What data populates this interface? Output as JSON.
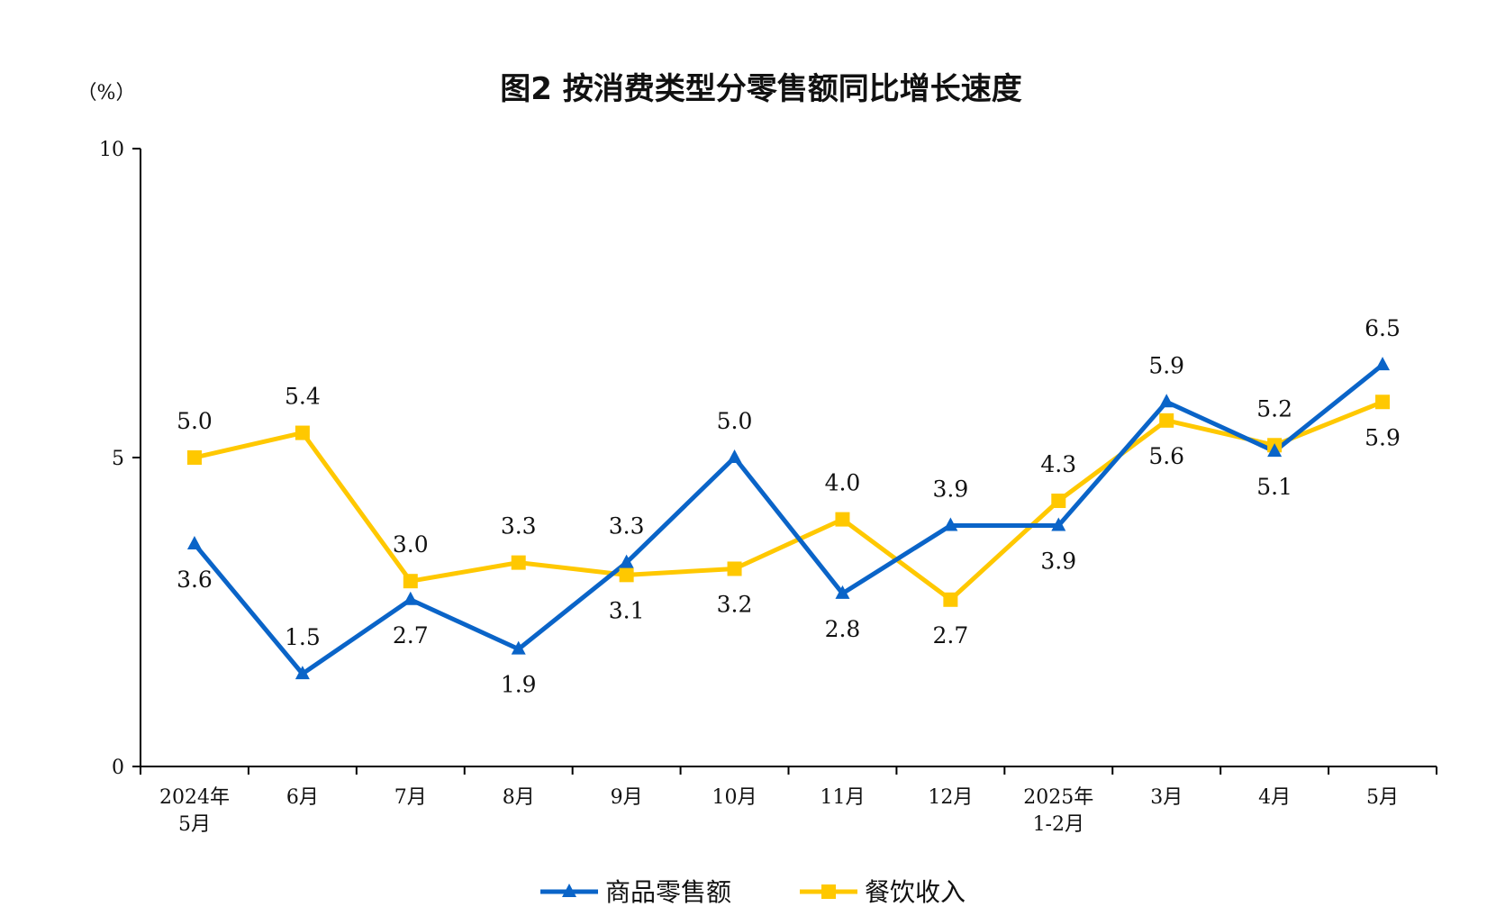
{
  "chart_data": {
    "type": "line",
    "title": "图2  按消费类型分零售额同比增长速度",
    "unit_label": "（%）",
    "ylim": [
      0,
      10
    ],
    "yticks": [
      "0",
      "5",
      "10"
    ],
    "categories": [
      [
        "2024年",
        "5月"
      ],
      [
        "6月"
      ],
      [
        "7月"
      ],
      [
        "8月"
      ],
      [
        "9月"
      ],
      [
        "10月"
      ],
      [
        "11月"
      ],
      [
        "12月"
      ],
      [
        "2025年",
        "1-2月"
      ],
      [
        "3月"
      ],
      [
        "4月"
      ],
      [
        "5月"
      ]
    ],
    "series": [
      {
        "name": "商品零售额",
        "color": "#0a64c8",
        "marker": "triangle",
        "values": [
          3.6,
          1.5,
          2.7,
          1.9,
          3.3,
          5.0,
          2.8,
          3.9,
          3.9,
          5.9,
          5.1,
          6.5
        ],
        "labels": [
          "3.6",
          "1.5",
          "2.7",
          "1.9",
          "3.3",
          "5.0",
          "2.8",
          "3.9",
          "3.9",
          "5.9",
          "5.1",
          "6.5"
        ],
        "label_pos": [
          "below",
          "above",
          "below",
          "below",
          "above",
          "above",
          "below",
          "above",
          "below",
          "above",
          "below",
          "above"
        ]
      },
      {
        "name": "餐饮收入",
        "color": "#ffc800",
        "marker": "square",
        "values": [
          5.0,
          5.4,
          3.0,
          3.3,
          3.1,
          3.2,
          4.0,
          2.7,
          4.3,
          5.6,
          5.2,
          5.9
        ],
        "labels": [
          "5.0",
          "5.4",
          "3.0",
          "3.3",
          "3.1",
          "3.2",
          "4.0",
          "2.7",
          "4.3",
          "5.6",
          "5.2",
          "5.9"
        ],
        "label_pos": [
          "above",
          "above",
          "above",
          "above",
          "below",
          "below",
          "above",
          "below",
          "above",
          "below",
          "above",
          "below"
        ]
      }
    ],
    "legend": "bottom"
  }
}
